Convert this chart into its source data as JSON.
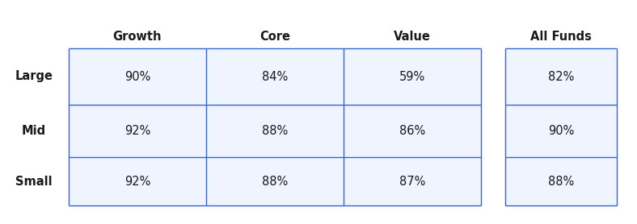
{
  "col_headers": [
    "Growth",
    "Core",
    "Value",
    "All Funds"
  ],
  "row_headers": [
    "Large",
    "Mid",
    "Small"
  ],
  "values": [
    [
      "90%",
      "84%",
      "59%",
      "82%"
    ],
    [
      "92%",
      "88%",
      "86%",
      "90%"
    ],
    [
      "92%",
      "88%",
      "87%",
      "88%"
    ]
  ],
  "table_line_color": "#3366CC",
  "header_fontsize": 10.5,
  "row_header_fontsize": 10.5,
  "cell_fontsize": 10.5,
  "header_fontweight": "bold",
  "row_header_fontweight": "bold",
  "background_color": "#FFFFFF",
  "cell_bg_color": "#F0F4FF",
  "text_color": "#1a1a1a"
}
